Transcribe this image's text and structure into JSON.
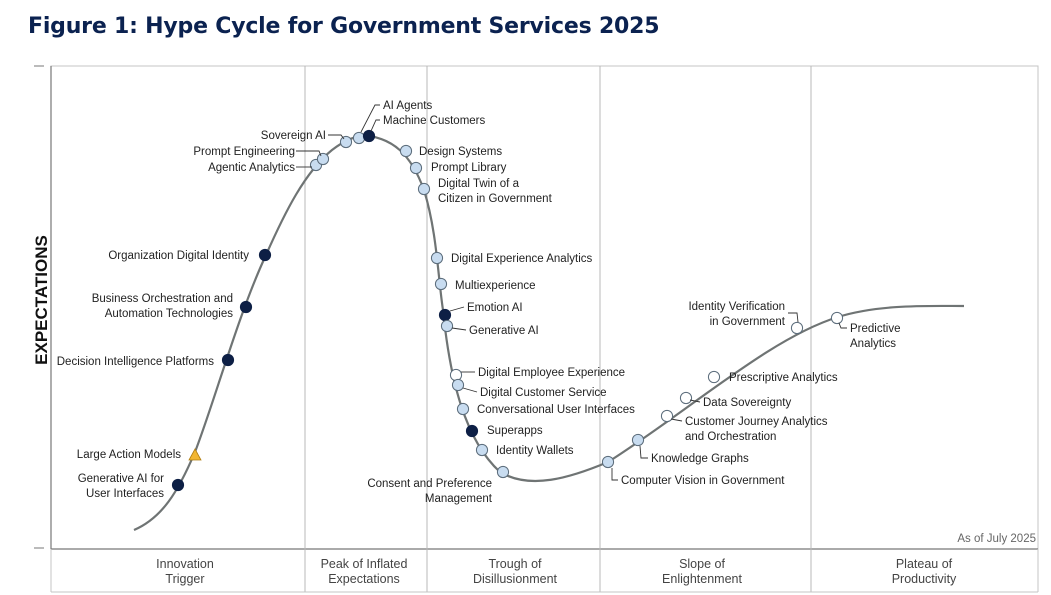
{
  "figure_title": "Figure 1: Hype Cycle for Government Services 2025",
  "chart_data": {
    "type": "scatter",
    "title": "Figure 1: Hype Cycle for Government Services 2025",
    "ylabel": "EXPECTATIONS",
    "xlabel": "",
    "as_of": "As of July 2025",
    "phases": [
      {
        "line1": "Innovation",
        "line2": "Trigger"
      },
      {
        "line1": "Peak of Inflated",
        "line2": "Expectations"
      },
      {
        "line1": "Trough of",
        "line2": "Disillusionment"
      },
      {
        "line1": "Slope of",
        "line2": "Enlightenment"
      },
      {
        "line1": "Plateau of",
        "line2": "Productivity"
      }
    ],
    "marker_colors": {
      "dark": "#0d1f45",
      "light": "#c8dcf0",
      "open": "#ffffff",
      "triangle": "#f2b631"
    },
    "curve_color": "#6f7474",
    "technologies": [
      {
        "label": "Generative AI for User Interfaces",
        "lines": [
          "Generative AI for",
          "User Interfaces"
        ],
        "marker": "dark"
      },
      {
        "label": "Large Action Models",
        "lines": [
          "Large Action Models"
        ],
        "marker": "triangle"
      },
      {
        "label": "Decision Intelligence Platforms",
        "lines": [
          "Decision Intelligence Platforms"
        ],
        "marker": "dark"
      },
      {
        "label": "Business Orchestration and Automation Technologies",
        "lines": [
          "Business Orchestration and",
          "Automation Technologies"
        ],
        "marker": "dark"
      },
      {
        "label": "Organization Digital Identity",
        "lines": [
          "Organization Digital Identity"
        ],
        "marker": "dark"
      },
      {
        "label": "Agentic Analytics",
        "lines": [
          "Agentic Analytics"
        ],
        "marker": "light"
      },
      {
        "label": "Prompt Engineering",
        "lines": [
          "Prompt Engineering"
        ],
        "marker": "light"
      },
      {
        "label": "Sovereign AI",
        "lines": [
          "Sovereign AI"
        ],
        "marker": "light"
      },
      {
        "label": "AI Agents",
        "lines": [
          "AI Agents"
        ],
        "marker": "light"
      },
      {
        "label": "Machine Customers",
        "lines": [
          "Machine Customers"
        ],
        "marker": "dark"
      },
      {
        "label": "Design Systems",
        "lines": [
          "Design Systems"
        ],
        "marker": "light"
      },
      {
        "label": "Prompt Library",
        "lines": [
          "Prompt Library"
        ],
        "marker": "light"
      },
      {
        "label": "Digital Twin of a Citizen in Government",
        "lines": [
          "Digital Twin of a",
          "Citizen in Government"
        ],
        "marker": "light"
      },
      {
        "label": "Digital Experience Analytics",
        "lines": [
          "Digital Experience Analytics"
        ],
        "marker": "light"
      },
      {
        "label": "Multiexperience",
        "lines": [
          "Multiexperience"
        ],
        "marker": "light"
      },
      {
        "label": "Emotion AI",
        "lines": [
          "Emotion AI"
        ],
        "marker": "dark"
      },
      {
        "label": "Generative AI",
        "lines": [
          "Generative AI"
        ],
        "marker": "light"
      },
      {
        "label": "Digital Employee Experience",
        "lines": [
          "Digital Employee Experience"
        ],
        "marker": "open"
      },
      {
        "label": "Digital Customer Service",
        "lines": [
          "Digital Customer Service"
        ],
        "marker": "light"
      },
      {
        "label": "Conversational User Interfaces",
        "lines": [
          "Conversational User Interfaces"
        ],
        "marker": "light"
      },
      {
        "label": "Superapps",
        "lines": [
          "Superapps"
        ],
        "marker": "dark"
      },
      {
        "label": "Identity Wallets",
        "lines": [
          "Identity Wallets"
        ],
        "marker": "light"
      },
      {
        "label": "Consent and Preference Management",
        "lines": [
          "Consent and Preference",
          "Management"
        ],
        "marker": "light"
      },
      {
        "label": "Computer Vision in Government",
        "lines": [
          "Computer Vision in Government"
        ],
        "marker": "light"
      },
      {
        "label": "Knowledge Graphs",
        "lines": [
          "Knowledge Graphs"
        ],
        "marker": "light"
      },
      {
        "label": "Customer Journey Analytics and Orchestration",
        "lines": [
          "Customer Journey Analytics",
          "and Orchestration"
        ],
        "marker": "open"
      },
      {
        "label": "Data Sovereignty",
        "lines": [
          "Data Sovereignty"
        ],
        "marker": "open"
      },
      {
        "label": "Prescriptive Analytics",
        "lines": [
          "Prescriptive Analytics"
        ],
        "marker": "open"
      },
      {
        "label": "Identity Verification in Government",
        "lines": [
          "Identity Verification",
          "in Government"
        ],
        "marker": "open"
      },
      {
        "label": "Predictive Analytics",
        "lines": [
          "Predictive",
          "Analytics"
        ],
        "marker": "open"
      }
    ]
  }
}
